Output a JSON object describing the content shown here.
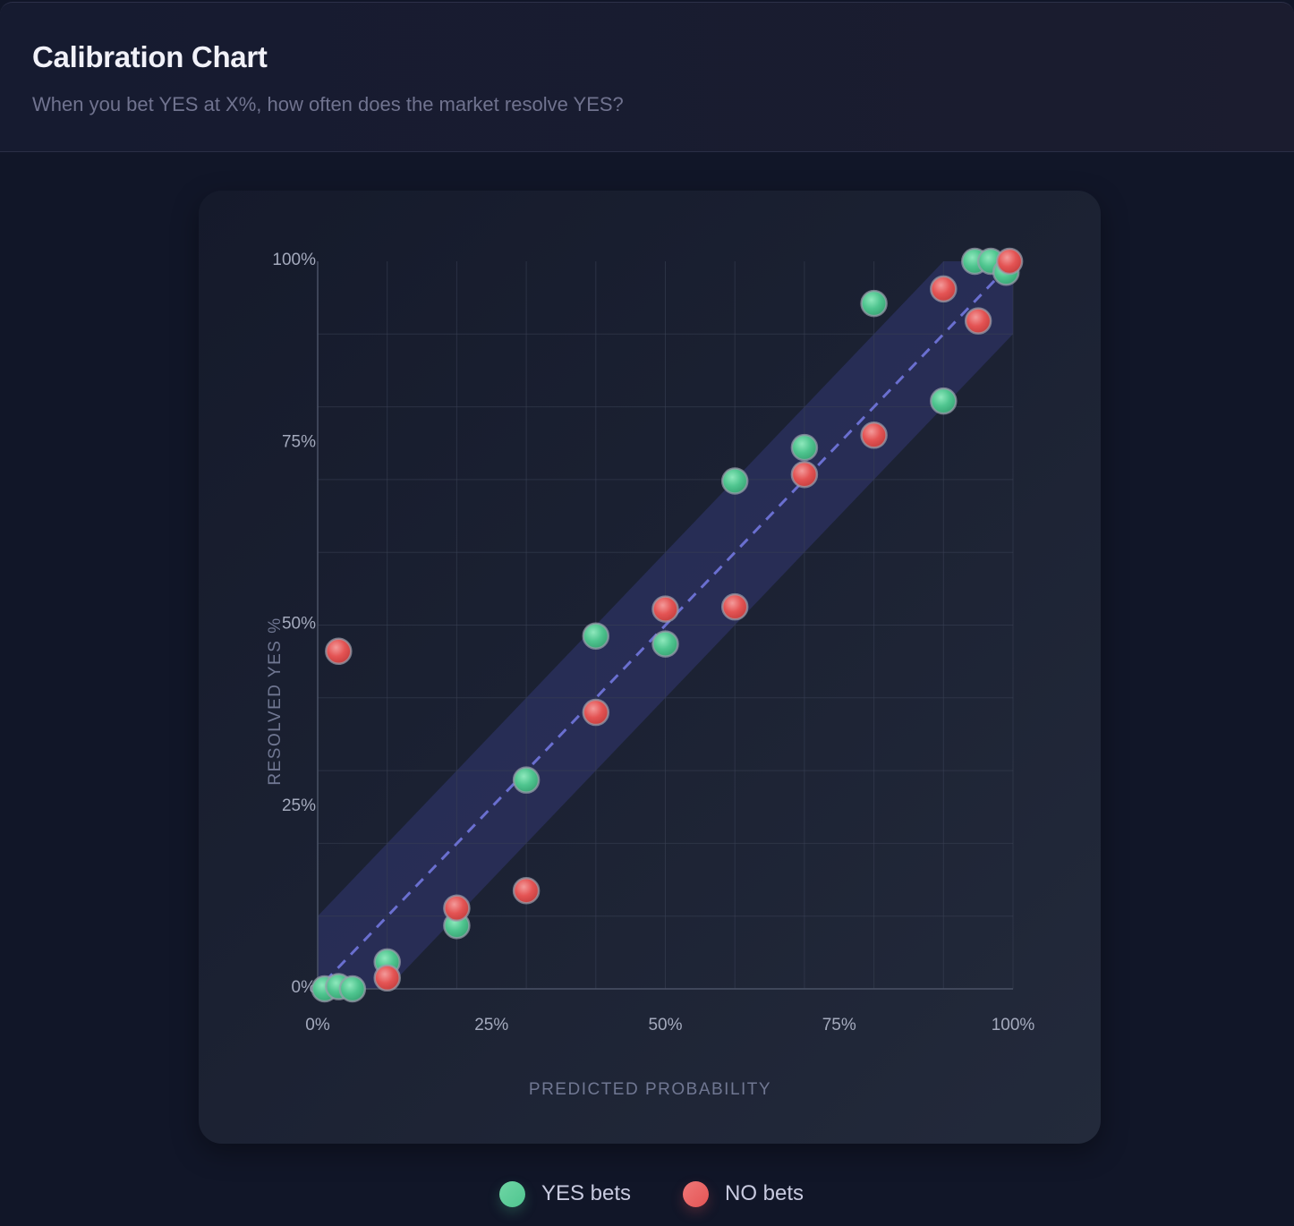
{
  "header": {
    "title": "Calibration Chart",
    "subtitle": "When you bet YES at X%, how often does the market resolve YES?"
  },
  "colors": {
    "yes": "#4fc58f",
    "no": "#e45454",
    "diagonal": "#6a6fd0",
    "band": "#2c3262"
  },
  "legend": [
    {
      "label": "YES bets",
      "series": "yes"
    },
    {
      "label": "NO bets",
      "series": "no"
    }
  ],
  "chart_data": {
    "type": "scatter",
    "title": "Calibration Chart",
    "xlabel": "PREDICTED PROBABILITY",
    "ylabel": "RESOLVED YES %",
    "xlim": [
      0,
      100
    ],
    "ylim": [
      0,
      100
    ],
    "x_ticks": [
      0,
      25,
      50,
      75,
      100
    ],
    "y_ticks": [
      0,
      25,
      50,
      75,
      100
    ],
    "x_tick_labels": [
      "0%",
      "25%",
      "50%",
      "75%",
      "100%"
    ],
    "y_tick_labels": [
      "0%",
      "25%",
      "50%",
      "75%",
      "100%"
    ],
    "grid": true,
    "grid_step": 10,
    "reference_line": {
      "type": "diagonal",
      "from": [
        0,
        0
      ],
      "to": [
        100,
        100
      ],
      "style": "dashed"
    },
    "tolerance_band": 10,
    "legend_position": "bottom-center",
    "series": [
      {
        "name": "YES bets",
        "key": "yes",
        "points": [
          [
            1,
            0
          ],
          [
            3,
            0.3
          ],
          [
            5,
            0
          ],
          [
            10,
            3.7
          ],
          [
            20,
            8.7
          ],
          [
            30,
            28.7
          ],
          [
            40,
            48.5
          ],
          [
            50,
            47.4
          ],
          [
            60,
            69.8
          ],
          [
            70,
            74.4
          ],
          [
            80,
            94.2
          ],
          [
            90,
            80.8
          ],
          [
            94.5,
            100
          ],
          [
            96.8,
            100
          ],
          [
            99,
            98.5
          ]
        ]
      },
      {
        "name": "NO bets",
        "key": "no",
        "points": [
          [
            3,
            46.4
          ],
          [
            10,
            1.5
          ],
          [
            20,
            11.1
          ],
          [
            30,
            13.5
          ],
          [
            40,
            38
          ],
          [
            50,
            52.2
          ],
          [
            60,
            52.5
          ],
          [
            70,
            70.7
          ],
          [
            80,
            76.1
          ],
          [
            90,
            96.2
          ],
          [
            95,
            91.8
          ],
          [
            99.5,
            100
          ]
        ]
      }
    ]
  }
}
